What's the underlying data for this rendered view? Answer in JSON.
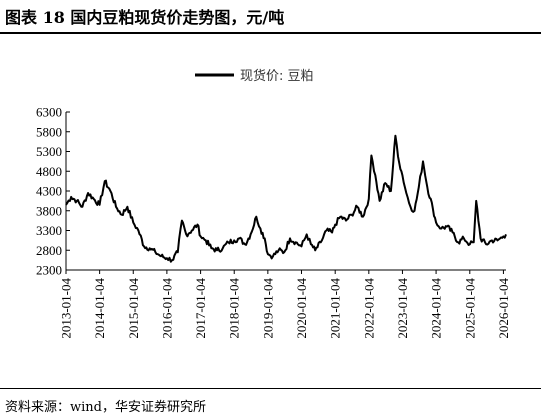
{
  "figure": {
    "title": "图表 18 国内豆粕现货价走势图，元/吨",
    "source": "资料来源：wind，华安证券研究所"
  },
  "chart_data": {
    "type": "line",
    "title": "",
    "xlabel": "",
    "ylabel": "",
    "legend_position": "top-center",
    "grid": false,
    "ylim": [
      2300,
      6300
    ],
    "yticks": [
      2300,
      2800,
      3300,
      3800,
      4300,
      4800,
      5300,
      5800,
      6300
    ],
    "xlim": [
      "2013-01-04",
      "2026-02-01"
    ],
    "xticks": [
      "2013-01-04",
      "2014-01-04",
      "2015-01-04",
      "2016-01-04",
      "2017-01-04",
      "2018-01-04",
      "2019-01-04",
      "2020-01-04",
      "2021-01-04",
      "2022-01-04",
      "2023-01-04",
      "2024-01-04",
      "2025-01-04",
      "2026-01-04"
    ],
    "series": [
      {
        "name": "现货价: 豆粕",
        "color": "#000000",
        "x": [
          "2013-01-04",
          "2013-03-01",
          "2013-05-01",
          "2013-07-01",
          "2013-09-01",
          "2013-11-01",
          "2014-01-04",
          "2014-03-01",
          "2014-05-01",
          "2014-07-01",
          "2014-09-01",
          "2014-11-01",
          "2015-01-04",
          "2015-03-01",
          "2015-05-01",
          "2015-07-01",
          "2015-09-01",
          "2015-11-01",
          "2016-01-04",
          "2016-03-01",
          "2016-05-01",
          "2016-06-15",
          "2016-08-01",
          "2016-10-01",
          "2016-12-01",
          "2017-01-04",
          "2017-03-01",
          "2017-05-01",
          "2017-07-01",
          "2017-09-01",
          "2017-11-01",
          "2018-01-04",
          "2018-03-01",
          "2018-05-01",
          "2018-07-01",
          "2018-09-01",
          "2018-10-15",
          "2018-12-01",
          "2019-01-04",
          "2019-03-01",
          "2019-05-01",
          "2019-07-01",
          "2019-09-01",
          "2019-11-01",
          "2020-01-04",
          "2020-03-01",
          "2020-04-15",
          "2020-06-01",
          "2020-08-01",
          "2020-10-01",
          "2020-12-01",
          "2021-01-04",
          "2021-03-01",
          "2021-05-01",
          "2021-07-01",
          "2021-09-01",
          "2021-11-01",
          "2022-01-04",
          "2022-02-01",
          "2022-03-15",
          "2022-05-01",
          "2022-07-01",
          "2022-09-01",
          "2022-10-20",
          "2022-12-01",
          "2023-01-04",
          "2023-02-15",
          "2023-04-01",
          "2023-05-15",
          "2023-07-01",
          "2023-08-15",
          "2023-10-01",
          "2023-12-01",
          "2024-01-04",
          "2024-03-01",
          "2024-05-01",
          "2024-07-01",
          "2024-09-01",
          "2024-11-01",
          "2025-01-04",
          "2025-02-15",
          "2025-03-15",
          "2025-05-01",
          "2025-07-01",
          "2025-09-01",
          "2025-11-01",
          "2026-01-04",
          "2026-02-01"
        ],
        "y": [
          3950,
          4150,
          4050,
          3900,
          4250,
          4100,
          3950,
          4550,
          4300,
          3900,
          3700,
          3900,
          3500,
          3300,
          2900,
          2850,
          2750,
          2650,
          2600,
          2550,
          2750,
          3550,
          3200,
          3300,
          3450,
          3150,
          3050,
          2850,
          2800,
          2850,
          3000,
          3050,
          3100,
          2950,
          3200,
          3650,
          3350,
          3100,
          2700,
          2650,
          2800,
          2750,
          3100,
          3000,
          2900,
          3200,
          2950,
          2800,
          3000,
          3300,
          3250,
          3450,
          3650,
          3550,
          3700,
          3900,
          3650,
          4100,
          5200,
          4700,
          4050,
          4500,
          4300,
          5700,
          5000,
          4700,
          4250,
          3900,
          3800,
          4400,
          5050,
          4400,
          3850,
          3500,
          3350,
          3400,
          3250,
          3000,
          3100,
          2950,
          3000,
          4050,
          3100,
          2950,
          3050,
          3050,
          3150,
          3200
        ]
      }
    ]
  }
}
